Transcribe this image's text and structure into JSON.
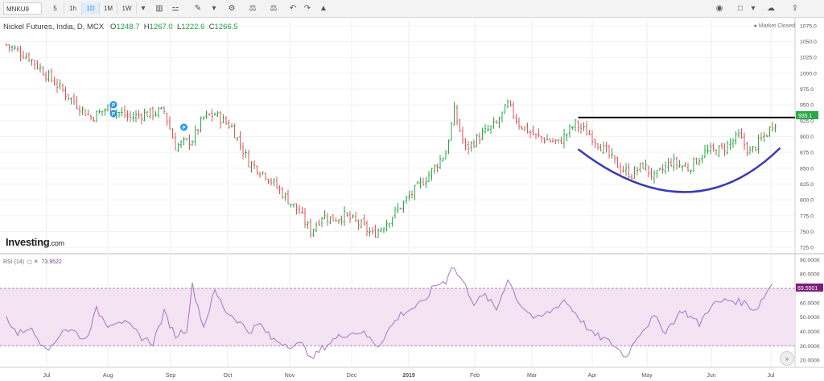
{
  "toolbar": {
    "symbol": "MNKU9",
    "intervals": [
      "5",
      "1h",
      "1D",
      "1M",
      "1W"
    ],
    "active_interval": "1D",
    "icons": [
      "dropdown-icon",
      "candles-icon",
      "indicators-icon",
      "drawing-icon",
      "dropdown-icon",
      "settings-icon",
      "compare-icon",
      "scale-icon",
      "undo-icon",
      "redo-icon",
      "alert-icon"
    ],
    "right_icons": [
      "camera-icon",
      "square-icon",
      "dropdown-icon",
      "cloud-icon",
      "cloud-upload-icon"
    ]
  },
  "header": {
    "title": "Nickel Futures, India, D, MCX",
    "open_label": "O",
    "open": "1248.7",
    "high_label": "H",
    "high": "1267.0",
    "low_label": "L",
    "low": "1222.6",
    "close_label": "C",
    "close": "1266.5",
    "market_status": "Market Closed"
  },
  "logo": {
    "main": "Investing",
    "suffix": ".com"
  },
  "rsi": {
    "label": "RSI (14)",
    "value": "73.9522",
    "last_label": "69.5501"
  },
  "price_label": "935.1",
  "colors": {
    "up": "#2aa84a",
    "down": "#e5545d",
    "rsi_line": "#a675c4",
    "rsi_band": "#f3e3f3",
    "curve": "#3b3bb0",
    "resistance": "#000000"
  },
  "chart_data": [
    {
      "type": "candlestick",
      "title": "Nickel Futures, India, D, MCX",
      "x_labels": [
        "Jul",
        "Aug",
        "Sep",
        "Oct",
        "Nov",
        "Dec",
        "2019",
        "Feb",
        "Mar",
        "Apr",
        "May",
        "Jun",
        "Jul"
      ],
      "y_ticks": [
        "725.0",
        "750.0",
        "775.0",
        "800.0",
        "825.0",
        "850.0",
        "875.0",
        "900.0",
        "925.0",
        "950.0",
        "975.0",
        "1000.0",
        "1025.0",
        "1050.0",
        "1075.0"
      ],
      "ylim": [
        715,
        1085
      ],
      "close_path": [
        [
          0,
          1045
        ],
        [
          8,
          1025
        ],
        [
          16,
          990
        ],
        [
          24,
          955
        ],
        [
          30,
          930
        ],
        [
          36,
          945
        ],
        [
          44,
          930
        ],
        [
          48,
          935
        ],
        [
          56,
          940
        ],
        [
          60,
          885
        ],
        [
          66,
          895
        ],
        [
          70,
          930
        ],
        [
          74,
          935
        ],
        [
          80,
          915
        ],
        [
          86,
          860
        ],
        [
          92,
          840
        ],
        [
          98,
          810
        ],
        [
          104,
          780
        ],
        [
          108,
          750
        ],
        [
          112,
          775
        ],
        [
          116,
          770
        ],
        [
          120,
          775
        ],
        [
          126,
          760
        ],
        [
          130,
          745
        ],
        [
          134,
          760
        ],
        [
          140,
          790
        ],
        [
          146,
          820
        ],
        [
          150,
          840
        ],
        [
          156,
          875
        ],
        [
          159,
          940
        ],
        [
          163,
          880
        ],
        [
          168,
          900
        ],
        [
          174,
          920
        ],
        [
          178,
          950
        ],
        [
          182,
          920
        ],
        [
          188,
          900
        ],
        [
          196,
          890
        ],
        [
          202,
          920
        ],
        [
          208,
          900
        ],
        [
          212,
          880
        ],
        [
          218,
          850
        ],
        [
          222,
          840
        ],
        [
          226,
          855
        ],
        [
          230,
          835
        ],
        [
          236,
          860
        ],
        [
          242,
          850
        ],
        [
          248,
          875
        ],
        [
          254,
          880
        ],
        [
          260,
          900
        ],
        [
          264,
          875
        ],
        [
          270,
          905
        ],
        [
          273,
          925
        ]
      ],
      "annotations": {
        "resistance": 930,
        "cup_left": [
          203,
          880
        ],
        "cup_bottom": [
          243,
          797
        ],
        "cup_right": [
          273,
          882
        ]
      }
    },
    {
      "type": "line",
      "title": "RSI (14)",
      "y_ticks": [
        "20.0000",
        "30.0000",
        "40.0000",
        "50.0000",
        "60.0000",
        "70.0000",
        "80.0000",
        "90.0000"
      ],
      "ylim": [
        15,
        93
      ],
      "band": [
        30,
        70
      ],
      "points": [
        [
          0,
          50
        ],
        [
          4,
          38
        ],
        [
          8,
          43
        ],
        [
          12,
          33
        ],
        [
          16,
          28
        ],
        [
          20,
          42
        ],
        [
          24,
          40
        ],
        [
          28,
          34
        ],
        [
          32,
          55
        ],
        [
          36,
          45
        ],
        [
          40,
          48
        ],
        [
          44,
          43
        ],
        [
          48,
          36
        ],
        [
          52,
          32
        ],
        [
          56,
          53
        ],
        [
          60,
          37
        ],
        [
          64,
          42
        ],
        [
          66,
          72
        ],
        [
          70,
          43
        ],
        [
          74,
          68
        ],
        [
          78,
          54
        ],
        [
          82,
          48
        ],
        [
          86,
          40
        ],
        [
          90,
          45
        ],
        [
          94,
          35
        ],
        [
          98,
          32
        ],
        [
          102,
          30
        ],
        [
          106,
          31
        ],
        [
          108,
          20
        ],
        [
          112,
          28
        ],
        [
          116,
          34
        ],
        [
          120,
          38
        ],
        [
          126,
          40
        ],
        [
          132,
          30
        ],
        [
          136,
          42
        ],
        [
          140,
          52
        ],
        [
          144,
          56
        ],
        [
          148,
          60
        ],
        [
          152,
          72
        ],
        [
          156,
          75
        ],
        [
          158,
          86
        ],
        [
          162,
          75
        ],
        [
          166,
          60
        ],
        [
          170,
          65
        ],
        [
          174,
          55
        ],
        [
          178,
          77
        ],
        [
          182,
          60
        ],
        [
          188,
          48
        ],
        [
          194,
          55
        ],
        [
          198,
          62
        ],
        [
          202,
          53
        ],
        [
          208,
          38
        ],
        [
          212,
          35
        ],
        [
          216,
          30
        ],
        [
          220,
          22
        ],
        [
          224,
          37
        ],
        [
          230,
          50
        ],
        [
          234,
          40
        ],
        [
          240,
          55
        ],
        [
          246,
          45
        ],
        [
          250,
          58
        ],
        [
          256,
          62
        ],
        [
          262,
          60
        ],
        [
          266,
          55
        ],
        [
          272,
          74
        ]
      ]
    }
  ]
}
